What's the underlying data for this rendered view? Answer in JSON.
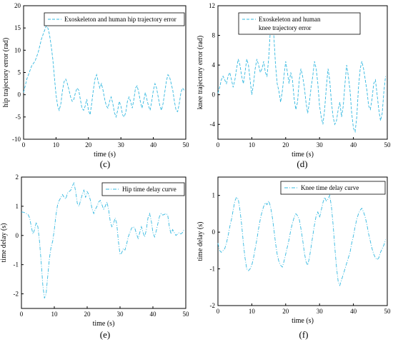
{
  "chart_data": [
    {
      "panel_label": "(c)",
      "type": "line",
      "xlabel": "time (s)",
      "ylabel": "hip trajectory error (rad)",
      "xlim": [
        0,
        50
      ],
      "ylim": [
        -10,
        20
      ],
      "xticks": [
        0,
        10,
        20,
        30,
        40,
        50
      ],
      "yticks": [
        -10,
        -5,
        0,
        5,
        10,
        15,
        20
      ],
      "legend_position": "top-right",
      "color": "#33b8e0",
      "series": [
        {
          "name": "Exoskeleton and human hip trajectory error",
          "x": [
            0,
            0.5,
            1,
            1.5,
            2,
            2.5,
            3,
            3.5,
            4,
            4.5,
            5,
            5.5,
            6,
            6.5,
            7,
            7.5,
            8,
            8.5,
            9,
            9.5,
            10,
            10.5,
            11,
            11.5,
            12,
            12.5,
            13,
            13.5,
            14,
            14.5,
            15,
            15.5,
            16,
            16.5,
            17,
            17.5,
            18,
            18.5,
            19,
            19.5,
            20,
            20.5,
            21,
            21.5,
            22,
            22.5,
            23,
            23.5,
            24,
            24.5,
            25,
            25.5,
            26,
            26.5,
            27,
            27.5,
            28,
            28.5,
            29,
            29.5,
            30,
            30.5,
            31,
            31.5,
            32,
            32.5,
            33,
            33.5,
            34,
            34.5,
            35,
            35.5,
            36,
            36.5,
            37,
            37.5,
            38,
            38.5,
            39,
            39.5,
            40,
            40.5,
            41,
            41.5,
            42,
            42.5,
            43,
            43.5,
            44,
            44.5,
            45,
            45.5,
            46,
            46.5,
            47,
            47.5,
            48,
            48.5,
            49,
            49.5
          ],
          "y": [
            0.5,
            2,
            3.5,
            4.5,
            5.5,
            6.5,
            7,
            7.5,
            8.5,
            9.5,
            11,
            12.5,
            13.5,
            14.5,
            15.5,
            15,
            13.5,
            11,
            8,
            4,
            0,
            -2.5,
            -3.5,
            -2,
            1,
            3,
            3.5,
            2.5,
            1,
            -0.5,
            -1.5,
            -1,
            0.5,
            1.5,
            1,
            -1,
            -3,
            -3.5,
            -2.5,
            -1,
            -3.5,
            -4.5,
            -2,
            1,
            3.5,
            4.5,
            3,
            1.5,
            2.5,
            1,
            -1,
            -2.5,
            -3,
            -1.5,
            -0.5,
            -2,
            -4,
            -5,
            -3.5,
            -1.5,
            -2.5,
            -4.5,
            -5,
            -4,
            -1.5,
            -0.5,
            -1.5,
            -3,
            -1,
            1.5,
            2,
            0.5,
            -1.5,
            -3,
            -1.5,
            0.5,
            -1,
            -2.5,
            -3.5,
            -1.5,
            1,
            2.5,
            1.5,
            -0.5,
            -2.5,
            -3.5,
            -2,
            0.5,
            3,
            4.5,
            4,
            2.5,
            1,
            -1.5,
            -3.5,
            -3.8,
            -2,
            0.5,
            1.5,
            1
          ]
        }
      ]
    },
    {
      "panel_label": "(d)",
      "type": "line",
      "xlabel": "time (s)",
      "ylabel": "knee trajectory error (rad)",
      "xlim": [
        0,
        50
      ],
      "ylim": [
        -6,
        12
      ],
      "xticks": [
        0,
        10,
        20,
        30,
        40,
        50
      ],
      "yticks": [
        -4,
        0,
        4,
        8,
        12
      ],
      "legend_position": "top-right",
      "color": "#33b8e0",
      "series": [
        {
          "name": "Exoskeleton and human knee trajectory error",
          "legend_lines": [
            "Exoskeleton and human",
            "knee trajectory error"
          ],
          "x": [
            0,
            0.5,
            1,
            1.5,
            2,
            2.5,
            3,
            3.5,
            4,
            4.5,
            5,
            5.5,
            6,
            6.5,
            7,
            7.5,
            8,
            8.5,
            9,
            9.5,
            10,
            10.5,
            11,
            11.5,
            12,
            12.5,
            13,
            13.5,
            14,
            14.5,
            15,
            15.5,
            16,
            16.5,
            17,
            17.5,
            18,
            18.5,
            19,
            19.5,
            20,
            20.5,
            21,
            21.5,
            22,
            22.5,
            23,
            23.5,
            24,
            24.5,
            25,
            25.5,
            26,
            26.5,
            27,
            27.5,
            28,
            28.5,
            29,
            29.5,
            30,
            30.5,
            31,
            31.5,
            32,
            32.5,
            33,
            33.5,
            34,
            34.5,
            35,
            35.5,
            36,
            36.5,
            37,
            37.5,
            38,
            38.5,
            39,
            39.5,
            40,
            40.5,
            41,
            41.5,
            42,
            42.5,
            43,
            43.5,
            44,
            44.5,
            45,
            45.5,
            46,
            46.5,
            47,
            47.5,
            48,
            48.5,
            49,
            49.5
          ],
          "y": [
            0.2,
            1,
            2,
            2.5,
            2,
            1.5,
            2.5,
            3,
            2,
            1,
            2,
            3.5,
            4.8,
            4,
            2.5,
            1.5,
            3,
            4.8,
            4,
            2,
            0,
            1.5,
            3.5,
            4.8,
            4,
            3,
            3.5,
            4.5,
            3,
            2.5,
            5,
            9,
            11,
            8,
            4,
            1.5,
            0.5,
            -1,
            0.5,
            2.5,
            4.5,
            3,
            1.5,
            3,
            2,
            -0.5,
            -2,
            -1,
            2,
            3.5,
            2.5,
            1,
            -1,
            -2.5,
            -1,
            1,
            2.5,
            4.5,
            3.5,
            1.5,
            -1.5,
            -3,
            -4,
            -2,
            1,
            3.5,
            2,
            -1,
            -3,
            -4,
            -3.5,
            -2,
            -1,
            -3,
            -1.5,
            1.5,
            4,
            2.5,
            0.5,
            -2.5,
            -4.5,
            -5,
            -3,
            1,
            3.5,
            4.5,
            3.5,
            2,
            0.5,
            -1.5,
            -2,
            -0.5,
            1.5,
            2,
            0,
            -2,
            -3.5,
            -2.5,
            0.5,
            2.5
          ]
        }
      ]
    },
    {
      "panel_label": "(e)",
      "type": "line",
      "xlabel": "time (s)",
      "ylabel": "time delay (s)",
      "xlim": [
        0,
        50
      ],
      "ylim": [
        -2.5,
        2
      ],
      "xticks": [
        0,
        10,
        20,
        30,
        40,
        50
      ],
      "yticks": [
        -2,
        -1,
        0,
        1,
        2
      ],
      "legend_position": "top-right",
      "color": "#33b8e0",
      "series": [
        {
          "name": "Hip time delay curve",
          "x": [
            0,
            0.5,
            1,
            1.5,
            2,
            2.5,
            3,
            3.5,
            4,
            4.5,
            5,
            5.5,
            6,
            6.5,
            7,
            7.5,
            8,
            8.5,
            9,
            9.5,
            10,
            10.5,
            11,
            11.5,
            12,
            12.5,
            13,
            13.5,
            14,
            14.5,
            15,
            15.5,
            16,
            16.5,
            17,
            17.5,
            18,
            18.5,
            19,
            19.5,
            20,
            20.5,
            21,
            21.5,
            22,
            22.5,
            23,
            23.5,
            24,
            24.5,
            25,
            25.5,
            26,
            26.5,
            27,
            27.5,
            28,
            28.5,
            29,
            29.5,
            30,
            30.5,
            31,
            31.5,
            32,
            32.5,
            33,
            33.5,
            34,
            34.5,
            35,
            35.5,
            36,
            36.5,
            37,
            37.5,
            38,
            38.5,
            39,
            39.5,
            40,
            40.5,
            41,
            41.5,
            42,
            42.5,
            43,
            43.5,
            44,
            44.5,
            45,
            45.5,
            46,
            46.5,
            47,
            47.5,
            48,
            48.5,
            49,
            49.5
          ],
          "y": [
            0.8,
            0.8,
            0.78,
            0.75,
            0.72,
            0.6,
            0.3,
            0.05,
            0.2,
            0.45,
            0.3,
            -0.2,
            -0.9,
            -1.7,
            -2.15,
            -2,
            -1.4,
            -0.8,
            -0.4,
            -0.2,
            0.2,
            0.7,
            1.05,
            1.2,
            1.3,
            1.4,
            1.3,
            1.25,
            1.45,
            1.5,
            1.55,
            1.7,
            1.8,
            1.5,
            1.1,
            1.0,
            1.2,
            1.4,
            1.55,
            1.3,
            1.5,
            1.4,
            1.2,
            0.9,
            0.75,
            0.9,
            1.0,
            1.15,
            1.2,
            1.05,
            0.9,
            1.0,
            1.15,
            0.9,
            0.5,
            0.3,
            0.4,
            0.6,
            0.4,
            -0.2,
            -0.65,
            -0.6,
            -0.45,
            -0.5,
            -0.3,
            -0.05,
            0.1,
            0.25,
            0.3,
            0.25,
            0.05,
            -0.1,
            0.1,
            0.3,
            0.1,
            -0.05,
            0.2,
            0.6,
            0.75,
            0.5,
            0.1,
            -0.05,
            0.15,
            0.4,
            0.65,
            0.75,
            0.7,
            0.72,
            0.75,
            0.7,
            0.3,
            0.05,
            0.2,
            0.1,
            0.0,
            0.05,
            0.1,
            0.05,
            0.1,
            0.2
          ]
        }
      ]
    },
    {
      "panel_label": "(f)",
      "type": "line",
      "xlabel": "time (s)",
      "ylabel": "time delay (s)",
      "xlim": [
        0,
        50
      ],
      "ylim": [
        -2,
        1.5
      ],
      "xticks": [
        0,
        10,
        20,
        30,
        40,
        50
      ],
      "yticks": [
        -2,
        -1,
        0,
        1
      ],
      "legend_position": "top-right",
      "color": "#33b8e0",
      "series": [
        {
          "name": "Knee time delay curve",
          "x": [
            0,
            0.5,
            1,
            1.5,
            2,
            2.5,
            3,
            3.5,
            4,
            4.5,
            5,
            5.5,
            6,
            6.5,
            7,
            7.5,
            8,
            8.5,
            9,
            9.5,
            10,
            10.5,
            11,
            11.5,
            12,
            12.5,
            13,
            13.5,
            14,
            14.5,
            15,
            15.5,
            16,
            16.5,
            17,
            17.5,
            18,
            18.5,
            19,
            19.5,
            20,
            20.5,
            21,
            21.5,
            22,
            22.5,
            23,
            23.5,
            24,
            24.5,
            25,
            25.5,
            26,
            26.5,
            27,
            27.5,
            28,
            28.5,
            29,
            29.5,
            30,
            30.5,
            31,
            31.5,
            32,
            32.5,
            33,
            33.5,
            34,
            34.5,
            35,
            35.5,
            36,
            36.5,
            37,
            37.5,
            38,
            38.5,
            39,
            39.5,
            40,
            40.5,
            41,
            41.5,
            42,
            42.5,
            43,
            43.5,
            44,
            44.5,
            45,
            45.5,
            46,
            46.5,
            47,
            47.5,
            48,
            48.5,
            49,
            49.5
          ],
          "y": [
            -0.3,
            -0.5,
            -0.55,
            -0.5,
            -0.45,
            -0.3,
            -0.1,
            0.15,
            0.35,
            0.6,
            0.85,
            0.95,
            0.9,
            0.6,
            0.2,
            -0.3,
            -0.7,
            -1.0,
            -1.05,
            -1.0,
            -0.9,
            -0.7,
            -0.45,
            -0.2,
            0.1,
            0.35,
            0.55,
            0.7,
            0.8,
            0.75,
            0.85,
            0.7,
            0.45,
            0.1,
            -0.3,
            -0.6,
            -0.8,
            -0.9,
            -0.95,
            -0.8,
            -0.6,
            -0.4,
            -0.2,
            0.05,
            0.25,
            0.4,
            0.5,
            0.45,
            0.35,
            0.1,
            -0.2,
            -0.55,
            -0.8,
            -0.9,
            -0.7,
            -0.4,
            -0.1,
            0.2,
            0.45,
            0.55,
            0.4,
            0.6,
            0.8,
            0.95,
            0.85,
            0.9,
            1.0,
            0.7,
            0.2,
            -0.4,
            -0.95,
            -1.35,
            -1.45,
            -1.3,
            -1.15,
            -1.0,
            -0.85,
            -0.7,
            -0.55,
            -0.3,
            -0.1,
            0.15,
            0.35,
            0.5,
            0.6,
            0.65,
            0.55,
            0.4,
            0.2,
            -0.05,
            -0.25,
            -0.45,
            -0.6,
            -0.7,
            -0.75,
            -0.7,
            -0.55,
            -0.45,
            -0.35,
            -0.2
          ]
        }
      ]
    }
  ]
}
